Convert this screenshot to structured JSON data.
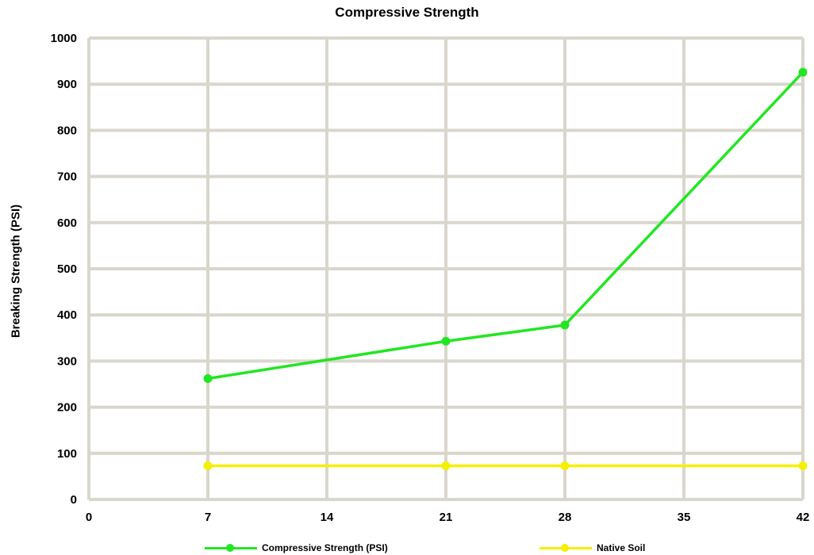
{
  "chart_data": {
    "type": "line",
    "title": "Compressive Strength",
    "xlabel": "",
    "ylabel": "Breaking Strength (PSI)",
    "x_ticks": [
      0,
      7,
      14,
      21,
      28,
      35,
      42
    ],
    "y_ticks": [
      0,
      100,
      200,
      300,
      400,
      500,
      600,
      700,
      800,
      900,
      1000
    ],
    "xlim": [
      0,
      42
    ],
    "ylim": [
      0,
      1000
    ],
    "grid": true,
    "legend_position": "bottom",
    "series": [
      {
        "name": "Compressive Strength (PSI)",
        "color": "#22e622",
        "x": [
          7,
          21,
          28,
          42
        ],
        "y": [
          262,
          343,
          378,
          926
        ]
      },
      {
        "name": "Native Soil",
        "color": "#f5f000",
        "x": [
          7,
          21,
          28,
          42
        ],
        "y": [
          73,
          73,
          73,
          73
        ]
      }
    ]
  },
  "colors": {
    "grid": "#d9d6cc",
    "background": "#ffffff"
  }
}
